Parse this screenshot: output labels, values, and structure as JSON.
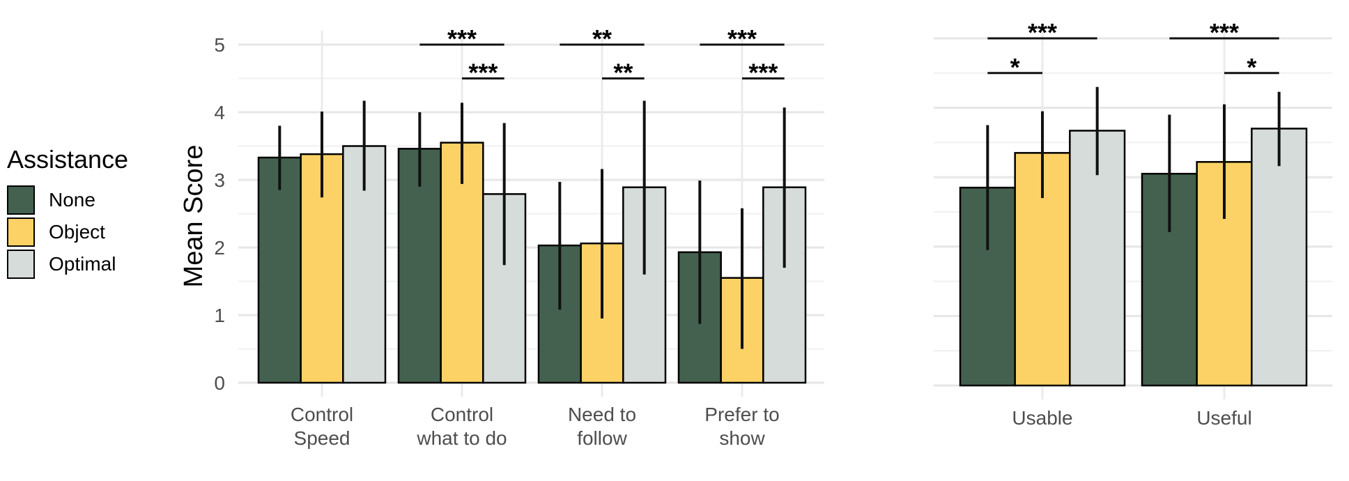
{
  "chart_data": [
    {
      "type": "bar",
      "ylabel": "Mean Score",
      "ylim": [
        0,
        5
      ],
      "yticks": [
        0,
        1,
        2,
        3,
        4,
        5
      ],
      "categories": [
        "Control\nSpeed",
        "Control\nwhat to do",
        "Need to\nfollow",
        "Prefer to\nshow"
      ],
      "series": [
        {
          "name": "None",
          "values": [
            3.33,
            3.46,
            2.03,
            1.93
          ],
          "error_low": [
            2.85,
            2.9,
            1.08,
            0.87
          ],
          "error_high": [
            3.8,
            4.0,
            2.97,
            2.99
          ]
        },
        {
          "name": "Object",
          "values": [
            3.38,
            3.55,
            2.06,
            1.55
          ],
          "error_low": [
            2.74,
            2.94,
            0.95,
            0.5
          ],
          "error_high": [
            4.01,
            4.14,
            3.16,
            2.58
          ]
        },
        {
          "name": "Optimal",
          "values": [
            3.5,
            2.79,
            2.89,
            2.89
          ],
          "error_low": [
            2.84,
            1.74,
            1.6,
            1.7
          ],
          "error_high": [
            4.17,
            3.84,
            4.17,
            4.07
          ]
        }
      ],
      "significance": [
        {
          "category": 1,
          "from": "None",
          "to": "Optimal",
          "label": "***",
          "y": 5.0
        },
        {
          "category": 1,
          "from": "Object",
          "to": "Optimal",
          "label": "***",
          "y": 4.5
        },
        {
          "category": 2,
          "from": "None",
          "to": "Optimal",
          "label": "**",
          "y": 5.0
        },
        {
          "category": 2,
          "from": "Object",
          "to": "Optimal",
          "label": "**",
          "y": 4.5
        },
        {
          "category": 3,
          "from": "None",
          "to": "Optimal",
          "label": "***",
          "y": 5.0
        },
        {
          "category": 3,
          "from": "Object",
          "to": "Optimal",
          "label": "***",
          "y": 4.5
        }
      ]
    },
    {
      "type": "bar",
      "ylabel": "",
      "ylim": [
        0,
        5
      ],
      "categories": [
        "Usable",
        "Useful"
      ],
      "series": [
        {
          "name": "None",
          "values": [
            2.85,
            3.05
          ],
          "error_low": [
            1.95,
            2.21
          ],
          "error_high": [
            3.75,
            3.9
          ]
        },
        {
          "name": "Object",
          "values": [
            3.35,
            3.22
          ],
          "error_low": [
            2.7,
            2.4
          ],
          "error_high": [
            3.95,
            4.05
          ]
        },
        {
          "name": "Optimal",
          "values": [
            3.67,
            3.7
          ],
          "error_low": [
            3.03,
            3.16
          ],
          "error_high": [
            4.3,
            4.23
          ]
        }
      ],
      "significance": [
        {
          "category": 0,
          "from": "None",
          "to": "Optimal",
          "label": "***",
          "y": 5.0
        },
        {
          "category": 0,
          "from": "None",
          "to": "Object",
          "label": "*",
          "y": 4.5
        },
        {
          "category": 1,
          "from": "None",
          "to": "Optimal",
          "label": "***",
          "y": 5.0
        },
        {
          "category": 1,
          "from": "Object",
          "to": "Optimal",
          "label": "*",
          "y": 4.5
        }
      ]
    }
  ],
  "legend": {
    "title": "Assistance",
    "items": [
      {
        "label": "None",
        "color": "#44614f"
      },
      {
        "label": "Object",
        "color": "#fcd266"
      },
      {
        "label": "Optimal",
        "color": "#d5dcda"
      }
    ]
  }
}
